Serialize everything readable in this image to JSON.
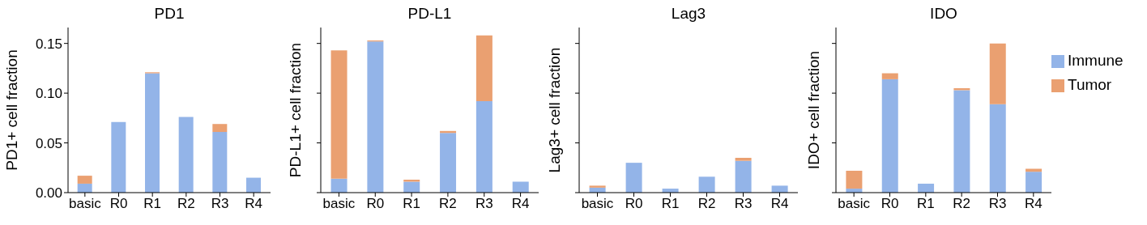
{
  "chart_data": [
    {
      "type": "bar",
      "title": "PD1",
      "ylabel": "PD1+ cell fraction",
      "categories": [
        "basic",
        "R0",
        "R1",
        "R2",
        "R3",
        "R4"
      ],
      "stacked": true,
      "series": [
        {
          "color": "#93b4e8",
          "values": [
            0.009,
            0.071,
            0.12,
            0.076,
            0.061,
            0.015
          ]
        },
        {
          "color": "#eaa071",
          "values": [
            0.008,
            0,
            0.001,
            0,
            0.008,
            0
          ]
        }
      ],
      "ylim": [
        0,
        0.166
      ],
      "yticks": [
        {
          "value": 0,
          "label": "0.00"
        },
        {
          "value": 0.05,
          "label": "0.05"
        },
        {
          "value": 0.1,
          "label": "0.10"
        },
        {
          "value": 0.15,
          "label": "0.15"
        }
      ],
      "grid": false,
      "legend": false
    },
    {
      "type": "bar",
      "title": "PD-L1",
      "ylabel": "PD-L1+ cell fraction",
      "categories": [
        "basic",
        "R0",
        "R1",
        "R2",
        "R3",
        "R4"
      ],
      "stacked": true,
      "series": [
        {
          "color": "#93b4e8",
          "values": [
            0.014,
            0.152,
            0.011,
            0.06,
            0.092,
            0.011
          ]
        },
        {
          "color": "#eaa071",
          "values": [
            0.129,
            0.001,
            0.002,
            0.002,
            0.066,
            0
          ]
        }
      ],
      "ylim": [
        0,
        0.166
      ],
      "yticks": [
        {
          "value": 0,
          "label": null
        },
        {
          "value": 0.05,
          "label": null
        },
        {
          "value": 0.1,
          "label": null
        },
        {
          "value": 0.15,
          "label": null
        }
      ],
      "tick_labels": "x",
      "grid": false,
      "legend": false
    },
    {
      "type": "bar",
      "title": "Lag3",
      "ylabel": "Lag3+ cell fraction",
      "categories": [
        "basic",
        "R0",
        "R1",
        "R2",
        "R3",
        "R4"
      ],
      "stacked": true,
      "series": [
        {
          "color": "#93b4e8",
          "values": [
            0.005,
            0.03,
            0.004,
            0.016,
            0.032,
            0.007
          ]
        },
        {
          "color": "#eaa071",
          "values": [
            0.002,
            0,
            0,
            0,
            0.003,
            0
          ]
        }
      ],
      "ylim": [
        0,
        0.166
      ],
      "yticks": [
        {
          "value": 0,
          "label": null
        },
        {
          "value": 0.05,
          "label": null
        },
        {
          "value": 0.1,
          "label": null
        },
        {
          "value": 0.15,
          "label": null
        }
      ],
      "tick_labels": "x",
      "grid": false,
      "legend": false
    },
    {
      "type": "bar",
      "title": "IDO",
      "ylabel": "IDO+ cell fraction",
      "categories": [
        "basic",
        "R0",
        "R1",
        "R2",
        "R3",
        "R4"
      ],
      "stacked": true,
      "series": [
        {
          "name": "Immune",
          "color": "#93b4e8",
          "values": [
            0.004,
            0.114,
            0.009,
            0.103,
            0.089,
            0.021
          ]
        },
        {
          "name": "Tumor",
          "color": "#eaa071",
          "values": [
            0.018,
            0.006,
            0,
            0.002,
            0.061,
            0.003
          ]
        }
      ],
      "ylim": [
        0,
        0.166
      ],
      "yticks": [
        {
          "value": 0,
          "label": null
        },
        {
          "value": 0.05,
          "label": null
        },
        {
          "value": 0.1,
          "label": null
        },
        {
          "value": 0.15,
          "label": null
        }
      ],
      "tick_labels": "x",
      "grid": false,
      "legend": "right"
    }
  ]
}
